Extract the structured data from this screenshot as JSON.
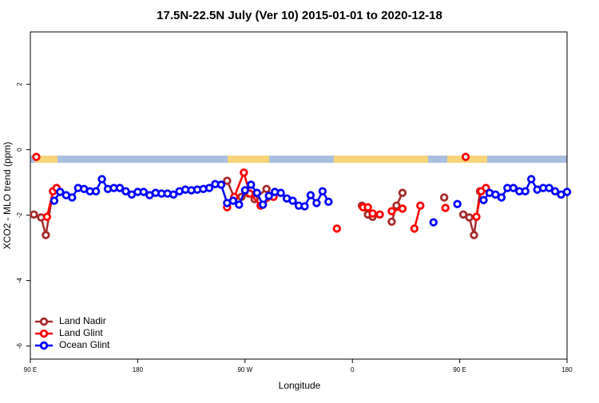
{
  "chart_data": {
    "type": "line",
    "title": "17.5N-22.5N July (Ver 10)   2015-01-01 to 2020-12-18",
    "x_label": "Longitude",
    "y_label": "XCO2 - MLO trend (ppm)",
    "xlim": [
      90,
      540
    ],
    "xticks": [
      {
        "value": 90,
        "label": "90 E"
      },
      180,
      {
        "value": 270,
        "label": "90 W"
      },
      0,
      {
        "value": 450,
        "label": "90 E"
      },
      180
    ],
    "ylim": [
      -6.4,
      3.6
    ],
    "yticks": [
      -6,
      -4,
      -2,
      0,
      2
    ],
    "legend": "bottomleft",
    "series": [
      {
        "name": "Land Nadir",
        "color": "#a52a2a",
        "x": [
          93,
          99,
          103,
          109,
          null,
          255,
          261,
          267,
          273,
          278,
          288,
          null,
          368,
          373,
          377,
          null,
          393,
          397,
          402,
          null,
          437,
          null,
          453,
          458,
          462,
          467
        ],
        "values": [
          -1.98,
          -2.07,
          -2.61,
          -1.27,
          null,
          -0.95,
          -1.46,
          -1.44,
          -1.34,
          -1.51,
          -1.2,
          null,
          -1.71,
          -1.98,
          -2.05,
          null,
          -2.2,
          -1.71,
          -1.32,
          null,
          -1.46,
          null,
          -1.98,
          -2.07,
          -2.61,
          -1.27
        ]
      },
      {
        "name": "Land Glint",
        "color": "#ff0000",
        "x": [
          95,
          null,
          104,
          109,
          112,
          null,
          255,
          261,
          269,
          274,
          283,
          294,
          null,
          347,
          null,
          369,
          373,
          377,
          383,
          null,
          393,
          402,
          null,
          412,
          417,
          null,
          438,
          null,
          455,
          null,
          464,
          468,
          472
        ],
        "values": [
          -0.22,
          null,
          -2.05,
          -1.27,
          -1.17,
          null,
          -1.76,
          -1.44,
          -0.7,
          -1.34,
          -1.71,
          -1.44,
          null,
          -2.41,
          null,
          -1.76,
          -1.76,
          -1.95,
          -1.98,
          null,
          -1.88,
          -1.8,
          null,
          -2.41,
          -1.71,
          null,
          -1.78,
          null,
          -0.22,
          null,
          -2.05,
          -1.27,
          -1.17
        ]
      },
      {
        "name": "Ocean Glint",
        "color": "#0000ff",
        "x": [
          110,
          115,
          120,
          125,
          130,
          135,
          140,
          145,
          150,
          155,
          160,
          165,
          170,
          175,
          180,
          185,
          190,
          195,
          200,
          205,
          210,
          215,
          220,
          225,
          230,
          235,
          240,
          245,
          250,
          255,
          260,
          265,
          270,
          275,
          280,
          285,
          290,
          295,
          300,
          305,
          310,
          315,
          320,
          325,
          330,
          335,
          340,
          null,
          428,
          null,
          448,
          null,
          470,
          475,
          480,
          485,
          490,
          495,
          500,
          505,
          510,
          515,
          520,
          525,
          530,
          535,
          540
        ],
        "values": [
          -1.56,
          -1.29,
          -1.39,
          -1.46,
          -1.17,
          -1.2,
          -1.27,
          -1.27,
          -0.9,
          -1.2,
          -1.17,
          -1.17,
          -1.27,
          -1.37,
          -1.29,
          -1.29,
          -1.39,
          -1.32,
          -1.34,
          -1.34,
          -1.37,
          -1.27,
          -1.22,
          -1.24,
          -1.22,
          -1.2,
          -1.17,
          -1.05,
          -1.07,
          -1.63,
          -1.56,
          -1.68,
          -1.24,
          -1.07,
          -1.32,
          -1.68,
          -1.41,
          -1.29,
          -1.32,
          -1.49,
          -1.56,
          -1.71,
          -1.73,
          -1.39,
          -1.63,
          -1.27,
          -1.59,
          null,
          -2.22,
          null,
          -1.66,
          null,
          -1.54,
          -1.32,
          -1.37,
          -1.46,
          -1.17,
          -1.17,
          -1.27,
          -1.27,
          -0.9,
          -1.22,
          -1.17,
          -1.17,
          -1.27,
          -1.37,
          -1.29
        ]
      }
    ]
  }
}
